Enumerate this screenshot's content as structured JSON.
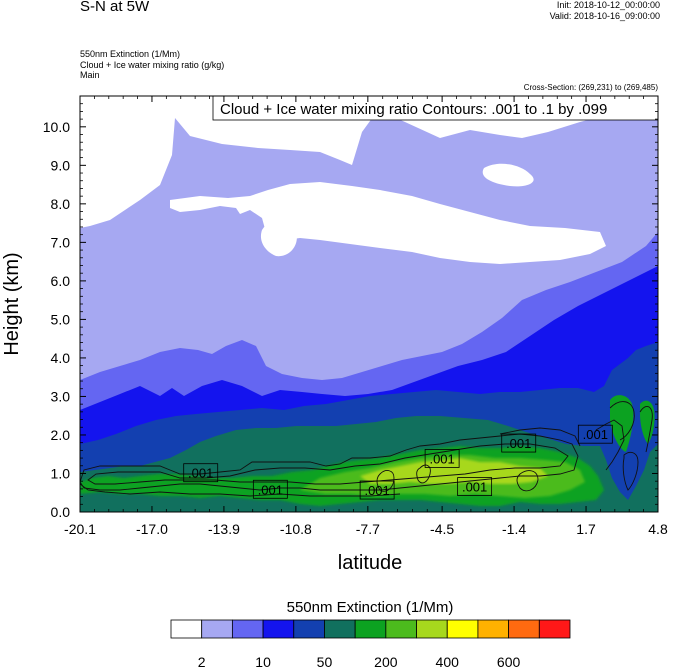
{
  "header": {
    "title": "S-N at 5W",
    "init_line": "Init: 2018-10-12_00:00:00",
    "valid_line": "Valid: 2018-10-16_09:00:00",
    "field_1": "550nm Extinction   (1/Mm)",
    "field_2": "Cloud + Ice water mixing ratio   (g/kg)",
    "field_3": "Main",
    "cross_section": "Cross-Section: (269,231) to (269,485)"
  },
  "chart_data": {
    "type": "heatmap",
    "title": "",
    "xlabel": "latitude",
    "ylabel": "Height (km)",
    "xlim": [
      -20.1,
      4.8
    ],
    "ylim": [
      0.0,
      10.8
    ],
    "x_ticks": [
      "-20.1",
      "-17.0",
      "-13.9",
      "-10.8",
      "-7.7",
      "-4.5",
      "-1.4",
      "1.7",
      "4.8"
    ],
    "y_ticks": [
      "0.0",
      "1.0",
      "2.0",
      "3.0",
      "4.0",
      "5.0",
      "6.0",
      "7.0",
      "8.0",
      "9.0",
      "10.0"
    ],
    "contour_title": "Cloud + Ice water mixing ratio Contours: .001 to .1 by .099",
    "contour_labels": [
      {
        "text": ".001",
        "x": -14.9,
        "y": 1.02
      },
      {
        "text": ".001",
        "x": -11.9,
        "y": 0.59
      },
      {
        "text": ".001",
        "x": -7.3,
        "y": 0.57
      },
      {
        "text": ".001",
        "x": -4.5,
        "y": 1.39
      },
      {
        "text": ".001",
        "x": -3.1,
        "y": 0.66
      },
      {
        "text": ".001",
        "x": -1.2,
        "y": 1.79
      },
      {
        "text": ".001",
        "x": 2.1,
        "y": 2.02
      }
    ],
    "colorbar": {
      "title": "550nm Extinction  (1/Mm)",
      "colors": [
        "#ffffff",
        "#a6a8f2",
        "#6466f2",
        "#1414ee",
        "#1340b0",
        "#11705e",
        "#0ca221",
        "#4cbb1d",
        "#a7d81d",
        "#ffff00",
        "#ffb100",
        "#ff6a10",
        "#ff1818"
      ],
      "tick_labels": [
        "2",
        "10",
        "50",
        "200",
        "400",
        "600"
      ]
    },
    "grid": false
  }
}
